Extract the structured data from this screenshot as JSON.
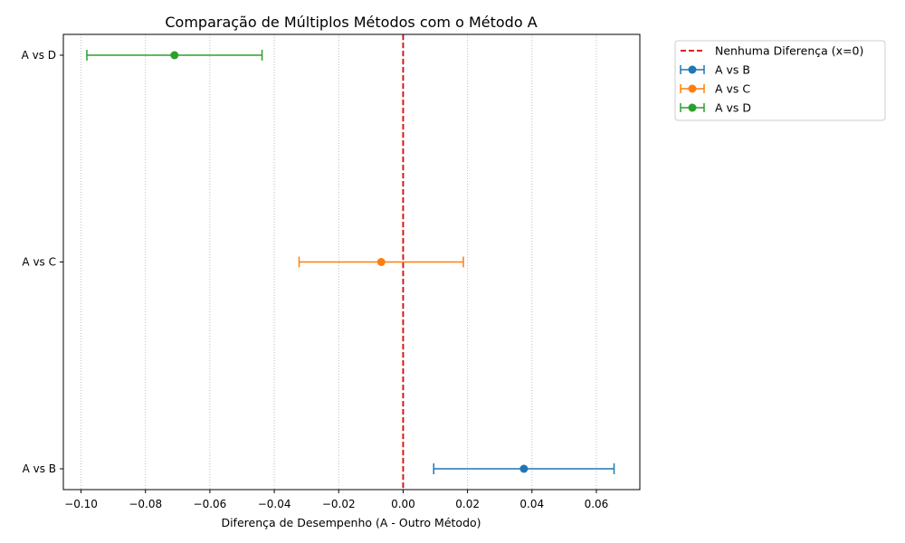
{
  "chart_data": {
    "type": "errorbar",
    "title": "Comparação de Múltiplos Métodos com o Método A",
    "xlabel": "Diferença de Desempenho (A - Outro Método)",
    "ylabel": "",
    "xlim": [
      -0.1055,
      0.0735
    ],
    "xticks": [
      -0.1,
      -0.08,
      -0.06,
      -0.04,
      -0.02,
      0.0,
      0.02,
      0.04,
      0.06
    ],
    "xtick_labels": [
      "−0.10",
      "−0.08",
      "−0.06",
      "−0.04",
      "−0.02",
      "0.00",
      "0.02",
      "0.04",
      "0.06"
    ],
    "categories": [
      "A vs B",
      "A vs C",
      "A vs D"
    ],
    "grid": "x-dotted",
    "reference_line": {
      "x": 0,
      "label": "Nenhuma Diferença (x=0)",
      "color": "#e00000",
      "style": "dashed"
    },
    "legend_position": "outside-upper-right",
    "series": [
      {
        "name": "A vs B",
        "value": 0.0375,
        "lower": 0.0095,
        "upper": 0.0655,
        "color": "#1f77b4"
      },
      {
        "name": "A vs C",
        "value": -0.0068,
        "lower": -0.0323,
        "upper": 0.0187,
        "color": "#ff7f0e"
      },
      {
        "name": "A vs D",
        "value": -0.071,
        "lower": -0.0982,
        "upper": -0.0438,
        "color": "#2ca02c"
      }
    ]
  }
}
